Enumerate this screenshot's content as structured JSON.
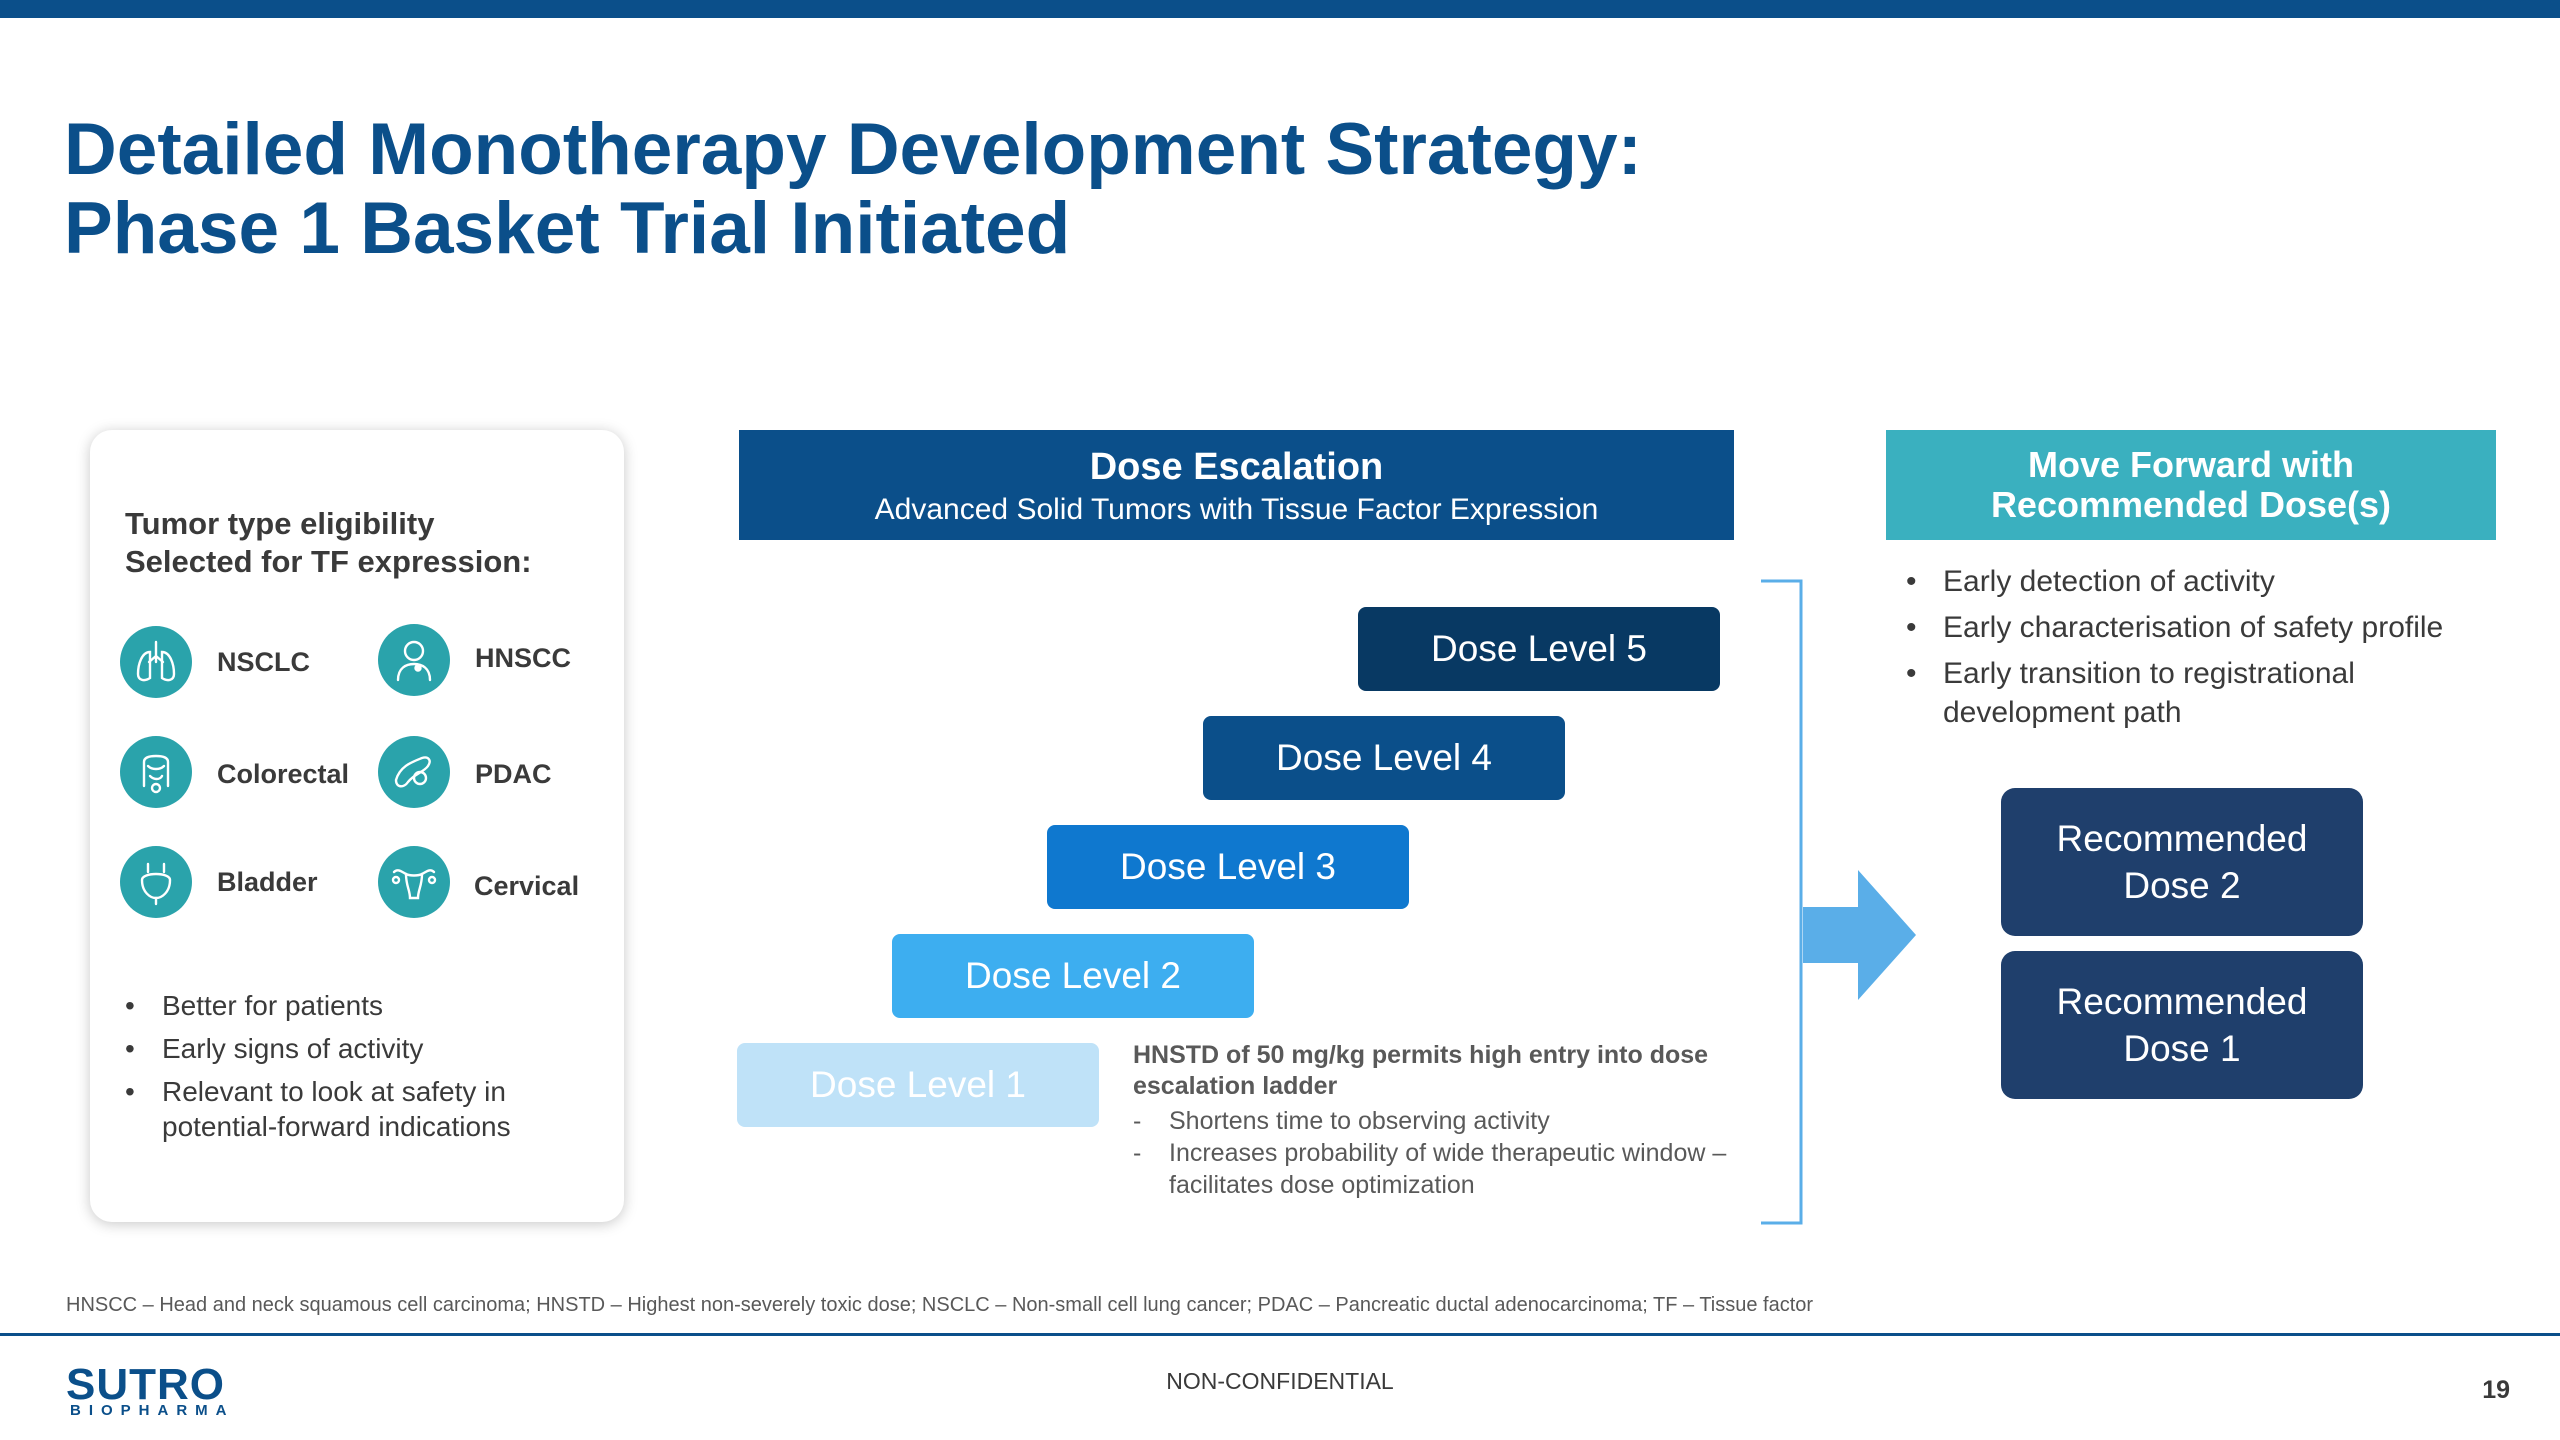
{
  "slide": {
    "title_line1": "Detailed Monotherapy Development Strategy:",
    "title_line2": "Phase 1 Basket Trial Initiated"
  },
  "eligibility": {
    "heading_line1": "Tumor type eligibility",
    "heading_line2": "Selected for TF expression:",
    "tumors": [
      {
        "label": "NSCLC",
        "icon": "lungs-icon"
      },
      {
        "label": "HNSCC",
        "icon": "head-neck-icon"
      },
      {
        "label": "Colorectal",
        "icon": "colon-icon"
      },
      {
        "label": "PDAC",
        "icon": "pancreas-icon"
      },
      {
        "label": "Bladder",
        "icon": "bladder-icon"
      },
      {
        "label": "Cervical",
        "icon": "uterus-icon"
      }
    ],
    "bullets": [
      "Better for patients",
      "Early signs of activity",
      "Relevant to look at safety in potential-forward indications"
    ]
  },
  "dose_escalation": {
    "title": "Dose Escalation",
    "subtitle": "Advanced Solid Tumors with Tissue Factor Expression",
    "levels": [
      "Dose Level 1",
      "Dose Level 2",
      "Dose Level 3",
      "Dose Level 4",
      "Dose Level 5"
    ],
    "colors": [
      "#bfe2f8",
      "#3daef0",
      "#0f78cf",
      "#0b4f8a",
      "#083963"
    ]
  },
  "hnstd": {
    "title": "HNSTD of 50 mg/kg permits high entry into dose escalation ladder",
    "points": [
      "Shortens time to observing activity",
      "Increases probability of wide therapeutic window – facilitates dose optimization"
    ]
  },
  "move_forward": {
    "title_line1": "Move Forward with",
    "title_line2": "Recommended Dose(s)",
    "bullets": [
      "Early detection of activity",
      "Early characterisation of safety profile",
      "Early transition to registrational development path"
    ],
    "dose2_line1": "Recommended",
    "dose2_line2": "Dose 2",
    "dose1_line1": "Recommended",
    "dose1_line2": "Dose 1"
  },
  "footnote": "HNSCC – Head and neck squamous cell carcinoma; HNSTD – Highest non-severely toxic dose; NSCLC – Non-small cell lung cancer; PDAC – Pancreatic ductal adenocarcinoma; TF – Tissue factor",
  "footer": {
    "logo_word": "SUTRO",
    "logo_sub": "BIOPHARMA",
    "classification": "NON-CONFIDENTIAL",
    "page_number": "19"
  },
  "colors": {
    "brand_blue": "#0b4f8a",
    "teal": "#3ab0bf",
    "icon_teal": "#2aa3ab",
    "recommended_navy": "#1f3f6c",
    "bracket_blue": "#5aaee8"
  }
}
